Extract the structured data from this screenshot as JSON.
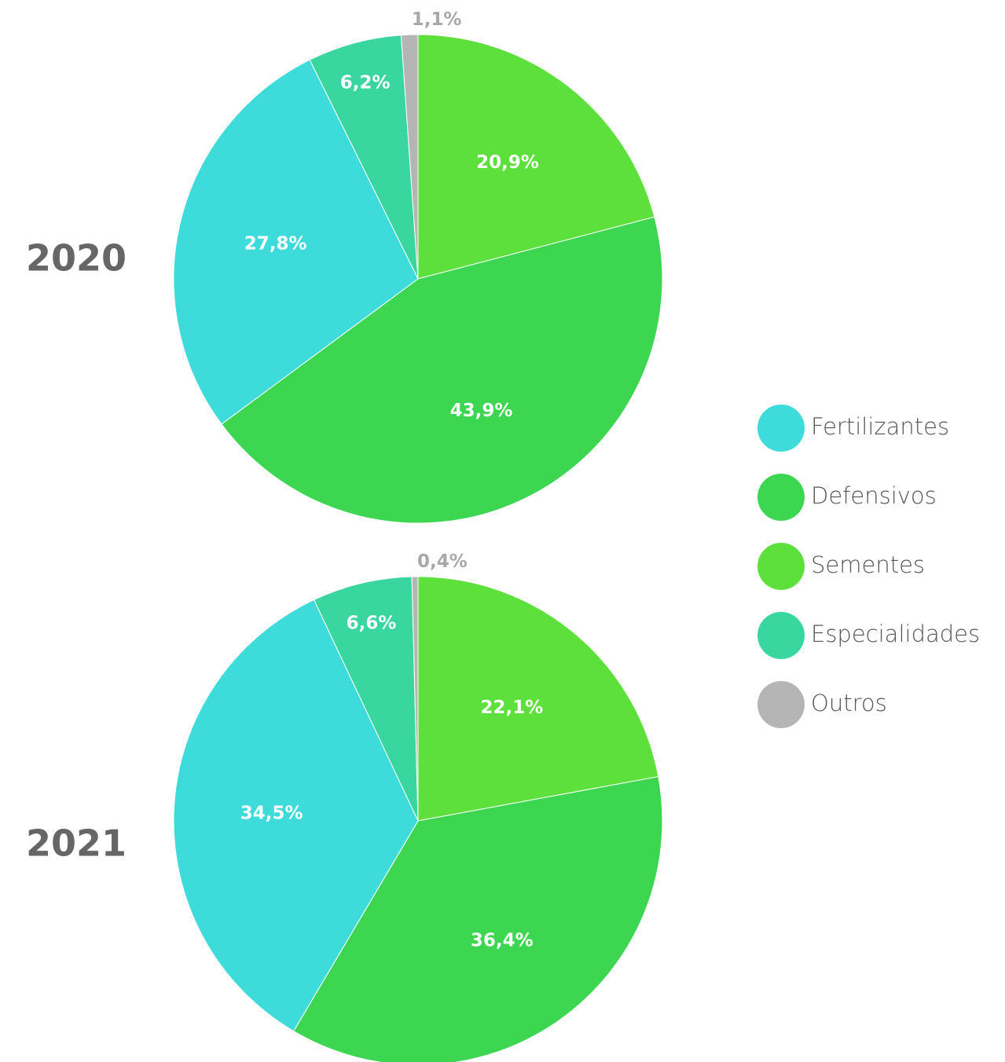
{
  "chart_data": [
    {
      "type": "pie",
      "title": "2020",
      "categories": [
        "Sementes",
        "Defensivos",
        "Fertilizantes",
        "Especialidades",
        "Outros"
      ],
      "values": [
        20.9,
        43.9,
        27.8,
        6.2,
        1.1
      ],
      "value_labels": [
        "20,9%",
        "43,9%",
        "27,8%",
        "6,2%",
        "1,1%"
      ],
      "colors": [
        "#5ddf3c",
        "#3dd651",
        "#3ddbd9",
        "#3ad6a0",
        "#b5b5b5"
      ]
    },
    {
      "type": "pie",
      "title": "2021",
      "categories": [
        "Sementes",
        "Defensivos",
        "Fertilizantes",
        "Especialidades",
        "Outros"
      ],
      "values": [
        22.1,
        36.4,
        34.5,
        6.6,
        0.4
      ],
      "value_labels": [
        "22,1%",
        "36,4%",
        "34,5%",
        "6,6%",
        "0,4%"
      ],
      "colors": [
        "#5ddf3c",
        "#3dd651",
        "#3ddbd9",
        "#3ad6a0",
        "#b5b5b5"
      ]
    }
  ]
}
